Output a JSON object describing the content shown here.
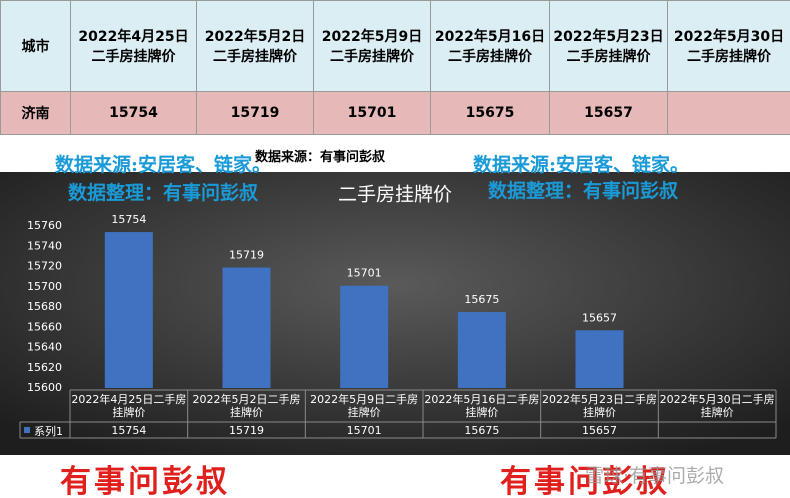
{
  "table": {
    "header": [
      "城市",
      [
        "2022年4月25日",
        "二手房挂牌价"
      ],
      [
        "2022年5月2日",
        "二手房挂牌价"
      ],
      [
        "2022年5月9日",
        "二手房挂牌价"
      ],
      [
        "2022年5月16日",
        "二手房挂牌价"
      ],
      [
        "2022年5月23日",
        "二手房挂牌价"
      ],
      [
        "2022年5月30日",
        "二手房挂牌价"
      ]
    ],
    "rows": [
      [
        "济南",
        15754,
        15719,
        15701,
        15675,
        15657
      ]
    ]
  },
  "annotations": {
    "source_center": "数据来源：有事问彭叔",
    "source_left": "数据来源:安居客、链家。",
    "source_right": "数据来源:安居客、链家。",
    "curator_left": "数据整理：有事问彭叔",
    "curator_right": "数据整理：有事问彭叔",
    "footer_left": "有事问彭叔",
    "footer_right": "有事问彭叔",
    "watermark": "雪球·有事问彭叔"
  },
  "chart_data": {
    "type": "bar",
    "title": "二手房挂牌价",
    "categories": [
      "2022年4月25日二手房挂牌价",
      "2022年5月2日二手房挂牌价",
      "2022年5月9日二手房挂牌价",
      "2022年5月16日二手房挂牌价",
      "2022年5月23日二手房挂牌价",
      "2022年5月30日二手房挂牌价"
    ],
    "series": [
      {
        "name": "系列1",
        "color": "#3f72c0",
        "values": [
          15754,
          15719,
          15701,
          15675,
          15657,
          null
        ]
      }
    ],
    "ylim": [
      15600,
      15760
    ],
    "yticks": [
      15600,
      15620,
      15640,
      15660,
      15680,
      15700,
      15720,
      15740,
      15760
    ],
    "grid": false
  }
}
